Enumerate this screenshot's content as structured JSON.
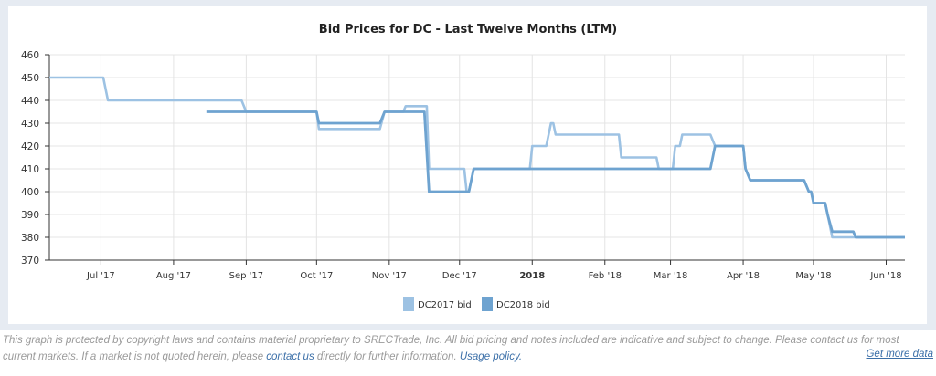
{
  "chart_data": {
    "type": "line",
    "title": "Bid Prices for DC - Last Twelve Months (LTM)",
    "xlabel": "",
    "ylabel": "",
    "xlim": [
      "2017-06-09",
      "2018-06-09"
    ],
    "ylim": [
      370,
      460
    ],
    "yticks": [
      370,
      380,
      390,
      400,
      410,
      420,
      430,
      440,
      450,
      460
    ],
    "xticks": [
      {
        "date": "2017-07-01",
        "label": "Jul '17"
      },
      {
        "date": "2017-08-01",
        "label": "Aug '17"
      },
      {
        "date": "2017-09-01",
        "label": "Sep '17"
      },
      {
        "date": "2017-10-01",
        "label": "Oct '17"
      },
      {
        "date": "2017-11-01",
        "label": "Nov '17"
      },
      {
        "date": "2017-12-01",
        "label": "Dec '17"
      },
      {
        "date": "2018-01-01",
        "label": "2018",
        "bold": true
      },
      {
        "date": "2018-02-01",
        "label": "Feb '18"
      },
      {
        "date": "2018-03-01",
        "label": "Mar '18"
      },
      {
        "date": "2018-04-01",
        "label": "Apr '18"
      },
      {
        "date": "2018-05-01",
        "label": "May '18"
      },
      {
        "date": "2018-06-01",
        "label": "Jun '18"
      }
    ],
    "grid": true,
    "legend_position": "bottom-center",
    "series": [
      {
        "name": "DC2017 bid",
        "color": "#9dc2e3",
        "points": [
          [
            "2017-06-09",
            450
          ],
          [
            "2017-07-02",
            450
          ],
          [
            "2017-07-04",
            440
          ],
          [
            "2017-08-30",
            440
          ],
          [
            "2017-09-01",
            435
          ],
          [
            "2017-10-01",
            435
          ],
          [
            "2017-10-02",
            427.5
          ],
          [
            "2017-10-28",
            427.5
          ],
          [
            "2017-10-30",
            435
          ],
          [
            "2017-11-07",
            435
          ],
          [
            "2017-11-08",
            437.5
          ],
          [
            "2017-11-17",
            437.5
          ],
          [
            "2017-11-18",
            410
          ],
          [
            "2017-12-03",
            410
          ],
          [
            "2017-12-04",
            400
          ],
          [
            "2017-12-05",
            400
          ],
          [
            "2017-12-07",
            410
          ],
          [
            "2017-12-31",
            410
          ],
          [
            "2018-01-01",
            420
          ],
          [
            "2018-01-07",
            420
          ],
          [
            "2018-01-09",
            430
          ],
          [
            "2018-01-10",
            430
          ],
          [
            "2018-01-11",
            425
          ],
          [
            "2018-02-07",
            425
          ],
          [
            "2018-02-08",
            415
          ],
          [
            "2018-02-23",
            415
          ],
          [
            "2018-02-24",
            410
          ],
          [
            "2018-03-02",
            410
          ],
          [
            "2018-03-03",
            420
          ],
          [
            "2018-03-05",
            420
          ],
          [
            "2018-03-06",
            425
          ],
          [
            "2018-03-18",
            425
          ],
          [
            "2018-03-20",
            420
          ],
          [
            "2018-04-01",
            420
          ],
          [
            "2018-04-02",
            410
          ],
          [
            "2018-04-04",
            405
          ],
          [
            "2018-04-27",
            405
          ],
          [
            "2018-04-29",
            400
          ],
          [
            "2018-04-30",
            400
          ],
          [
            "2018-05-01",
            395
          ],
          [
            "2018-05-06",
            395
          ],
          [
            "2018-05-07",
            390
          ],
          [
            "2018-05-09",
            380
          ],
          [
            "2018-06-09",
            380
          ]
        ]
      },
      {
        "name": "DC2018 bid",
        "color": "#6ea3d0",
        "points": [
          [
            "2017-08-15",
            435
          ],
          [
            "2017-10-01",
            435
          ],
          [
            "2017-10-02",
            430
          ],
          [
            "2017-10-28",
            430
          ],
          [
            "2017-10-30",
            435
          ],
          [
            "2017-11-16",
            435
          ],
          [
            "2017-11-18",
            400
          ],
          [
            "2017-12-05",
            400
          ],
          [
            "2017-12-07",
            410
          ],
          [
            "2018-03-18",
            410
          ],
          [
            "2018-03-20",
            420
          ],
          [
            "2018-04-01",
            420
          ],
          [
            "2018-04-02",
            410
          ],
          [
            "2018-04-04",
            405
          ],
          [
            "2018-04-27",
            405
          ],
          [
            "2018-04-29",
            400
          ],
          [
            "2018-04-30",
            400
          ],
          [
            "2018-05-01",
            395
          ],
          [
            "2018-05-06",
            395
          ],
          [
            "2018-05-07",
            390
          ],
          [
            "2018-05-09",
            382.5
          ],
          [
            "2018-05-18",
            382.5
          ],
          [
            "2018-05-19",
            380
          ],
          [
            "2018-06-09",
            380
          ]
        ]
      }
    ]
  },
  "footer": {
    "text1": "This graph is protected by copyright laws and contains material proprietary to SRECTrade, Inc. All bid pricing and notes included are indicative and subject to change. Please contact us for most current markets. If a market is not quoted herein, please ",
    "contact_link": "contact us",
    "text2": " directly for further information. ",
    "usage_link": "Usage policy.",
    "get_more": "Get more data"
  }
}
